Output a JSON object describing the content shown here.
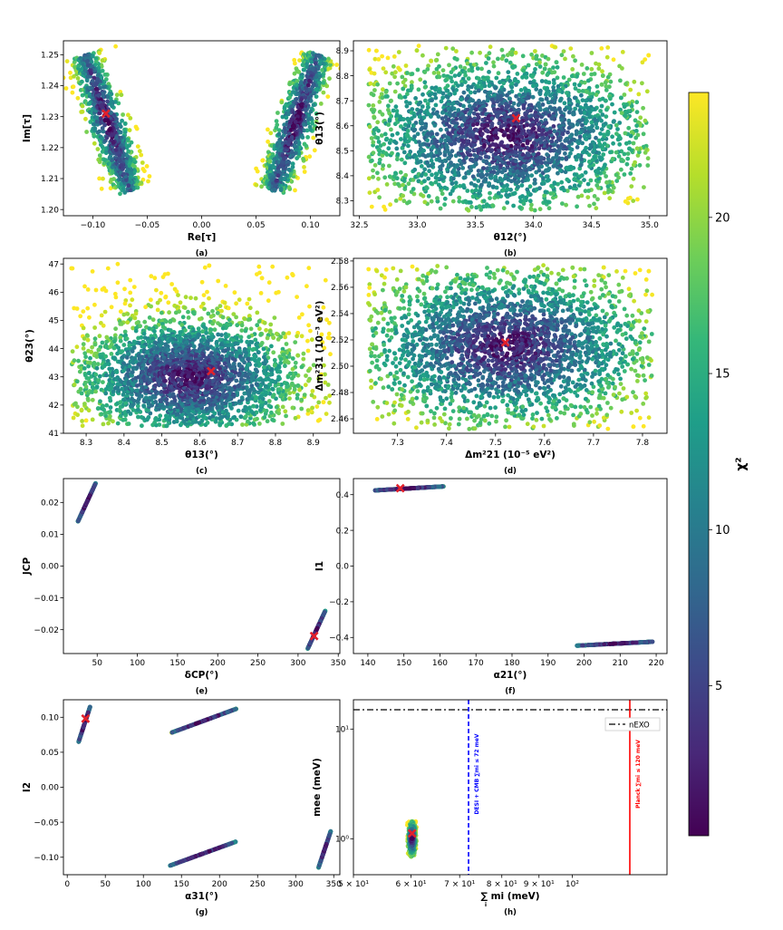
{
  "figure": {
    "colorbar": {
      "label": "χ²",
      "ticks": [
        5,
        10,
        15,
        20
      ],
      "range": [
        0.2,
        24
      ],
      "colors": [
        "#440154",
        "#482878",
        "#3e4989",
        "#31688e",
        "#26828e",
        "#1f9e89",
        "#35b779",
        "#6ece58",
        "#b5de2b",
        "#fde725"
      ]
    },
    "marker_color": "#e3212b",
    "nexo_line_color": "#000000",
    "desi_color": "#0000ff",
    "planck_color": "#ff0000"
  },
  "chart_data": [
    {
      "id": "a",
      "type": "scatter",
      "caption": "(a)",
      "xlabel": "Re[τ]",
      "ylabel": "Im[τ]",
      "xlim": [
        -0.127,
        0.127
      ],
      "ylim": [
        1.198,
        1.2545
      ],
      "xticks": [
        -0.1,
        -0.05,
        0.0,
        0.05,
        0.1
      ],
      "xtick_labels": [
        "−0.10",
        "−0.05",
        "0.00",
        "0.05",
        "0.10"
      ],
      "yticks": [
        1.2,
        1.21,
        1.22,
        1.23,
        1.24,
        1.25
      ],
      "ytick_labels": [
        "1.20",
        "1.21",
        "1.22",
        "1.23",
        "1.24",
        "1.25"
      ],
      "clusters": [
        {
          "kind": "band",
          "p1": [
            -0.107,
            1.25
          ],
          "p2": [
            -0.066,
            1.206
          ],
          "width": 0.026,
          "n": 750
        },
        {
          "kind": "band",
          "p1": [
            0.107,
            1.25
          ],
          "p2": [
            0.066,
            1.206
          ],
          "width": 0.026,
          "n": 750
        }
      ],
      "best_fit": [
        -0.088,
        1.231
      ]
    },
    {
      "id": "b",
      "type": "scatter",
      "caption": "(b)",
      "xlabel": "θ12(°)",
      "ylabel": "θ13(°)",
      "xlim": [
        32.45,
        35.15
      ],
      "ylim": [
        8.24,
        8.94
      ],
      "xticks": [
        32.5,
        33.0,
        33.5,
        34.0,
        34.5,
        35.0
      ],
      "xtick_labels": [
        "32.5",
        "33.0",
        "33.5",
        "34.0",
        "34.5",
        "35.0"
      ],
      "yticks": [
        8.3,
        8.4,
        8.5,
        8.6,
        8.7,
        8.8,
        8.9
      ],
      "ytick_labels": [
        "8.3",
        "8.4",
        "8.5",
        "8.6",
        "8.7",
        "8.8",
        "8.9"
      ],
      "clusters": [
        {
          "kind": "cloud",
          "center": [
            33.75,
            8.56
          ],
          "sd": [
            0.62,
            0.16
          ],
          "clip": [
            32.58,
            35.0,
            8.26,
            8.92
          ],
          "n": 2600
        }
      ],
      "best_fit": [
        33.85,
        8.63
      ]
    },
    {
      "id": "c",
      "type": "scatter",
      "caption": "(c)",
      "xlabel": "θ13(°)",
      "ylabel": "θ23(°)",
      "xlim": [
        8.24,
        8.97
      ],
      "ylim": [
        41.0,
        47.2
      ],
      "xticks": [
        8.3,
        8.4,
        8.5,
        8.6,
        8.7,
        8.8,
        8.9
      ],
      "xtick_labels": [
        "8.3",
        "8.4",
        "8.5",
        "8.6",
        "8.7",
        "8.8",
        "8.9"
      ],
      "yticks": [
        41,
        42,
        43,
        44,
        45,
        46,
        47
      ],
      "ytick_labels": [
        "41",
        "42",
        "43",
        "44",
        "45",
        "46",
        "47"
      ],
      "clusters": [
        {
          "kind": "cloud",
          "center": [
            8.57,
            43.0
          ],
          "sd": [
            0.15,
            1.1
          ],
          "clip": [
            8.26,
            8.95,
            41.25,
            47.0
          ],
          "n": 2600
        }
      ],
      "best_fit": [
        8.63,
        43.2
      ]
    },
    {
      "id": "d",
      "type": "scatter",
      "caption": "(d)",
      "xlabel": "Δm²21 (10⁻⁵ eV²)",
      "ylabel": "Δm²31 (10⁻³ eV²)",
      "xlim": [
        7.21,
        7.85
      ],
      "ylim": [
        2.449,
        2.582
      ],
      "xticks": [
        7.3,
        7.4,
        7.5,
        7.6,
        7.7,
        7.8
      ],
      "xtick_labels": [
        "7.3",
        "7.4",
        "7.5",
        "7.6",
        "7.7",
        "7.8"
      ],
      "yticks": [
        2.46,
        2.48,
        2.5,
        2.52,
        2.54,
        2.56,
        2.58
      ],
      "ytick_labels": [
        "2.46",
        "2.48",
        "2.50",
        "2.52",
        "2.54",
        "2.56",
        "2.58"
      ],
      "clusters": [
        {
          "kind": "cloud",
          "center": [
            7.52,
            2.515
          ],
          "sd": [
            0.15,
            0.03
          ],
          "clip": [
            7.24,
            7.82,
            2.452,
            2.577
          ],
          "n": 2600
        }
      ],
      "best_fit": [
        7.52,
        2.518
      ]
    },
    {
      "id": "e",
      "type": "scatter",
      "caption": "(e)",
      "xlabel": "δCP(°)",
      "ylabel": "JCP",
      "xlim": [
        8,
        352
      ],
      "ylim": [
        -0.0275,
        0.0275
      ],
      "xticks": [
        50,
        100,
        150,
        200,
        250,
        300,
        350
      ],
      "xtick_labels": [
        "50",
        "100",
        "150",
        "200",
        "250",
        "300",
        "350"
      ],
      "yticks": [
        -0.02,
        -0.01,
        0.0,
        0.01,
        0.02
      ],
      "ytick_labels": [
        "−0.02",
        "−0.01",
        "0.00",
        "0.01",
        "0.02"
      ],
      "clusters": [
        {
          "kind": "band",
          "p1": [
            26,
            0.014
          ],
          "p2": [
            48,
            0.026
          ],
          "width": 0.0012,
          "n": 350
        },
        {
          "kind": "band",
          "p1": [
            312,
            -0.026
          ],
          "p2": [
            334,
            -0.014
          ],
          "width": 0.0012,
          "n": 350
        }
      ],
      "best_fit": [
        320,
        -0.022
      ]
    },
    {
      "id": "f",
      "type": "scatter",
      "caption": "(f)",
      "xlabel": "α21(°)",
      "ylabel": "I1",
      "xlim": [
        136,
        223
      ],
      "ylim": [
        -0.49,
        0.49
      ],
      "xticks": [
        140,
        150,
        160,
        170,
        180,
        190,
        200,
        210,
        220
      ],
      "xtick_labels": [
        "140",
        "150",
        "160",
        "170",
        "180",
        "190",
        "200",
        "210",
        "220"
      ],
      "yticks": [
        -0.4,
        -0.2,
        0.0,
        0.2,
        0.4
      ],
      "ytick_labels": [
        "−0.4",
        "−0.2",
        "0.0",
        "0.2",
        "0.4"
      ],
      "clusters": [
        {
          "kind": "band",
          "p1": [
            142,
            0.424
          ],
          "p2": [
            161,
            0.446
          ],
          "width": 0.014,
          "n": 350
        },
        {
          "kind": "band",
          "p1": [
            198,
            -0.446
          ],
          "p2": [
            219,
            -0.424
          ],
          "width": 0.014,
          "n": 350
        }
      ],
      "best_fit": [
        149,
        0.436
      ]
    },
    {
      "id": "g",
      "type": "scatter",
      "caption": "(g)",
      "xlabel": "α31(°)",
      "ylabel": "I2",
      "xlim": [
        -5,
        358
      ],
      "ylim": [
        -0.125,
        0.125
      ],
      "xticks": [
        0,
        50,
        100,
        150,
        200,
        250,
        300,
        350
      ],
      "xtick_labels": [
        "0",
        "50",
        "100",
        "150",
        "200",
        "250",
        "300",
        "350"
      ],
      "yticks": [
        -0.1,
        -0.05,
        0.0,
        0.05,
        0.1
      ],
      "ytick_labels": [
        "−0.10",
        "−0.05",
        "0.00",
        "0.05",
        "0.10"
      ],
      "clusters": [
        {
          "kind": "band",
          "p1": [
            15,
            0.065
          ],
          "p2": [
            30,
            0.115
          ],
          "width": 0.007,
          "n": 300
        },
        {
          "kind": "band",
          "p1": [
            137,
            0.078
          ],
          "p2": [
            222,
            0.112
          ],
          "width": 0.005,
          "n": 380
        },
        {
          "kind": "band",
          "p1": [
            135,
            -0.112
          ],
          "p2": [
            221,
            -0.078
          ],
          "width": 0.005,
          "n": 380
        },
        {
          "kind": "band",
          "p1": [
            330,
            -0.115
          ],
          "p2": [
            346,
            -0.063
          ],
          "width": 0.007,
          "n": 300
        }
      ],
      "best_fit": [
        24,
        0.098
      ]
    },
    {
      "id": "h",
      "type": "scatter",
      "caption": "(h)",
      "xlabel": "∑ mi (meV)",
      "xlabel_sub": "i",
      "ylabel": "mee (meV)",
      "xscale": "log",
      "yscale": "log",
      "xlim": [
        50,
        135
      ],
      "ylim": [
        0.47,
        18.5
      ],
      "xticks": [
        50,
        60,
        70,
        80,
        90,
        100
      ],
      "xtick_labels": [
        "5 × 10¹",
        "6 × 10¹",
        "7 × 10¹",
        "8 × 10¹",
        "9 × 10¹",
        "10²"
      ],
      "yticks": [
        1,
        10
      ],
      "ytick_labels": [
        "10⁰",
        "10¹"
      ],
      "clusters": [
        {
          "kind": "cloud",
          "center": [
            60.2,
            1.0
          ],
          "sd": [
            0.35,
            0.18
          ],
          "log": true,
          "clip": [
            59.3,
            61.2,
            0.68,
            1.45
          ],
          "n": 350
        }
      ],
      "best_fit": [
        60.2,
        1.12
      ],
      "lines": [
        {
          "orient": "h",
          "value": 15.0,
          "style": "dashdot",
          "color": "#000000",
          "legend": "nEXO"
        },
        {
          "orient": "v",
          "value": 72,
          "style": "dashed",
          "color": "#0000ff",
          "label": "DESI + CMB  ∑mi ≤ 72 meV"
        },
        {
          "orient": "v",
          "value": 120,
          "style": "solid",
          "color": "#ff0000",
          "label": "Planck  ∑mi ≤ 120 meV"
        }
      ],
      "legend": [
        "nEXO"
      ]
    }
  ]
}
